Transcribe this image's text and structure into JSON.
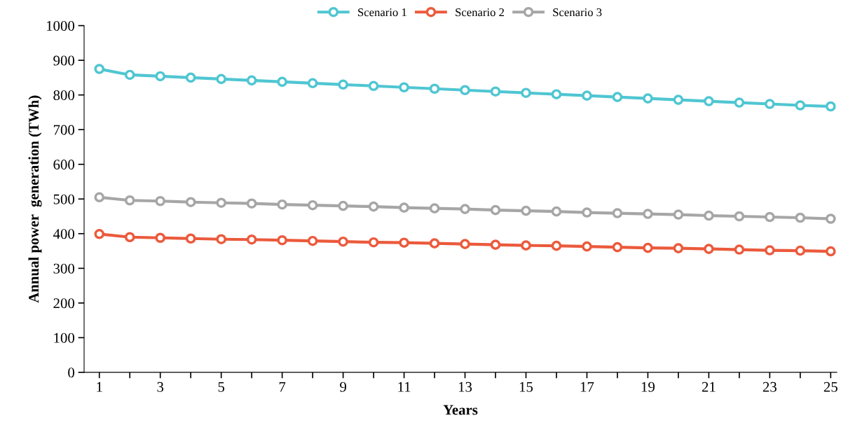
{
  "chart_data": {
    "type": "line",
    "xlabel": "Years",
    "ylabel": "Annual power  generation (TWh)",
    "x": [
      1,
      2,
      3,
      4,
      5,
      6,
      7,
      8,
      9,
      10,
      11,
      12,
      13,
      14,
      15,
      16,
      17,
      18,
      19,
      20,
      21,
      22,
      23,
      24,
      25
    ],
    "series": [
      {
        "name": "Scenario 1",
        "color": "#4fc6d2",
        "values": [
          875,
          858,
          854,
          850,
          846,
          842,
          838,
          834,
          830,
          826,
          822,
          818,
          814,
          810,
          806,
          802,
          798,
          794,
          790,
          786,
          782,
          778,
          774,
          770,
          767
        ]
      },
      {
        "name": "Scenario 2",
        "color": "#eb5a3c",
        "values": [
          399,
          390,
          388,
          386,
          384,
          383,
          381,
          379,
          377,
          375,
          374,
          372,
          370,
          368,
          366,
          365,
          363,
          361,
          359,
          358,
          356,
          354,
          352,
          351,
          349
        ]
      },
      {
        "name": "Scenario 3",
        "color": "#a6a6a6",
        "values": [
          505,
          496,
          494,
          491,
          489,
          487,
          484,
          482,
          480,
          478,
          475,
          473,
          471,
          468,
          466,
          464,
          461,
          459,
          457,
          455,
          452,
          450,
          448,
          446,
          443
        ]
      }
    ],
    "xlim": [
      0.5,
      25.2
    ],
    "xticks": [
      1,
      {
        "value": 2,
        "label": null
      },
      3,
      {
        "value": 4,
        "label": null
      },
      5,
      {
        "value": 6,
        "label": null
      },
      7,
      {
        "value": 8,
        "label": null
      },
      9,
      {
        "value": 10,
        "label": null
      },
      11,
      {
        "value": 12,
        "label": null
      },
      13,
      {
        "value": 14,
        "label": null
      },
      15,
      {
        "value": 16,
        "label": null
      },
      17,
      {
        "value": 18,
        "label": null
      },
      19,
      {
        "value": 20,
        "label": null
      },
      21,
      {
        "value": 22,
        "label": null
      },
      23,
      {
        "value": 24,
        "label": null
      },
      25
    ],
    "ylim": [
      0,
      1000
    ],
    "yticks": [
      0,
      100,
      200,
      300,
      400,
      500,
      600,
      700,
      800,
      900,
      1000
    ],
    "grid": false,
    "legend": "top",
    "marker": "circle",
    "line_style": "solid"
  }
}
